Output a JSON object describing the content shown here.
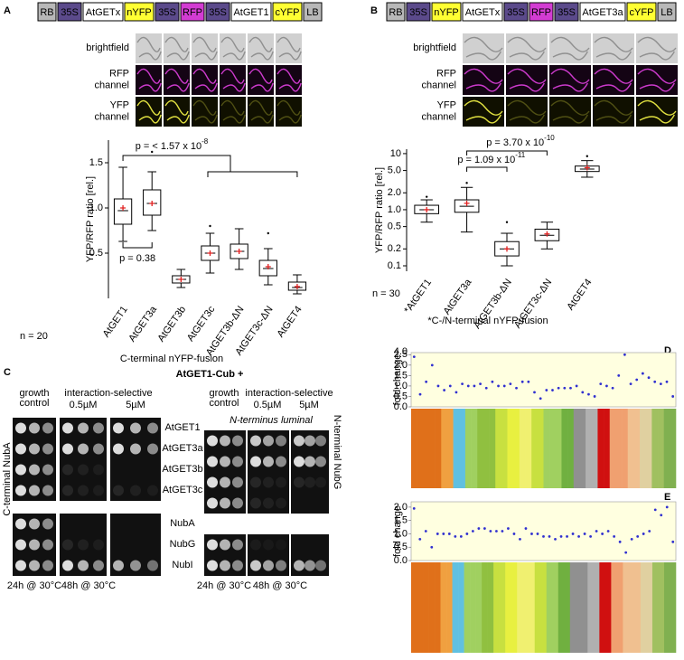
{
  "panel_labels": [
    "A",
    "B",
    "C",
    "D",
    "E"
  ],
  "constructs": {
    "a": [
      {
        "label": "RB",
        "color": "#b8b8b8"
      },
      {
        "label": "35S",
        "color": "#5b4a8b"
      },
      {
        "label": "AtGETx",
        "color": "#ffffff"
      },
      {
        "label": "nYFP",
        "color": "#ffff33"
      },
      {
        "label": "35S",
        "color": "#5b4a8b"
      },
      {
        "label": "RFP",
        "color": "#d23cd2"
      },
      {
        "label": "35S",
        "color": "#5b4a8b"
      },
      {
        "label": "AtGET1",
        "color": "#ffffff"
      },
      {
        "label": "cYFP",
        "color": "#ffff33"
      },
      {
        "label": "LB",
        "color": "#b8b8b8"
      }
    ],
    "b": [
      {
        "label": "RB",
        "color": "#b8b8b8"
      },
      {
        "label": "35S",
        "color": "#5b4a8b"
      },
      {
        "label": "nYFP",
        "color": "#ffff33"
      },
      {
        "label": "AtGETx",
        "color": "#ffffff"
      },
      {
        "label": "35S",
        "color": "#5b4a8b"
      },
      {
        "label": "RFP",
        "color": "#d23cd2"
      },
      {
        "label": "35S",
        "color": "#5b4a8b"
      },
      {
        "label": "AtGET3a",
        "color": "#ffffff"
      },
      {
        "label": "cYFP",
        "color": "#ffff33"
      },
      {
        "label": "LB",
        "color": "#b8b8b8"
      }
    ]
  },
  "microscopy": {
    "a": [
      [
        "brightfield"
      ],
      [
        "RFP",
        "channel"
      ],
      [
        "YFP",
        "channel"
      ]
    ],
    "b": [
      [
        "brightfield"
      ],
      [
        "RFP",
        "channel"
      ],
      [
        "YFP",
        "channel"
      ]
    ]
  },
  "chart_data": [
    {
      "type": "box",
      "ylabel": "YFP/RFP ratio [rel.]",
      "xlabel": "C-terminal nYFP-fusion",
      "n_label": "n = 20",
      "categories": [
        "AtGET1",
        "AtGET3a",
        "AtGET3b",
        "AtGET3c",
        "AtGET3b-ΔN",
        "AtGET3c-ΔN",
        "AtGET4"
      ],
      "boxes": [
        {
          "whislo": 0.63,
          "q1": 0.82,
          "med": 0.97,
          "q3": 1.1,
          "whishi": 1.45,
          "mean": 1.0,
          "outliers": []
        },
        {
          "whislo": 0.75,
          "q1": 0.92,
          "med": 1.05,
          "q3": 1.2,
          "whishi": 1.4,
          "mean": 1.05,
          "outliers": [
            1.62
          ]
        },
        {
          "whislo": 0.12,
          "q1": 0.17,
          "med": 0.21,
          "q3": 0.25,
          "whishi": 0.32,
          "mean": 0.21,
          "outliers": []
        },
        {
          "whislo": 0.28,
          "q1": 0.42,
          "med": 0.5,
          "q3": 0.58,
          "whishi": 0.72,
          "mean": 0.5,
          "outliers": [
            0.8
          ]
        },
        {
          "whislo": 0.32,
          "q1": 0.44,
          "med": 0.52,
          "q3": 0.6,
          "whishi": 0.77,
          "mean": 0.52,
          "outliers": []
        },
        {
          "whislo": 0.15,
          "q1": 0.25,
          "med": 0.33,
          "q3": 0.42,
          "whishi": 0.55,
          "mean": 0.35,
          "outliers": [
            0.72
          ]
        },
        {
          "whislo": 0.05,
          "q1": 0.09,
          "med": 0.12,
          "q3": 0.18,
          "whishi": 0.26,
          "mean": 0.13,
          "outliers": []
        }
      ],
      "ylim": [
        0,
        1.75
      ],
      "yticks": [
        0.5,
        {
          "value": 1,
          "label": "1.0"
        },
        1.5
      ],
      "log_y": false,
      "annotations": [
        {
          "text": "p = < 1.57 x 10",
          "exponent": "-8"
        },
        {
          "text": "p = 0.38"
        }
      ]
    },
    {
      "type": "box",
      "ylabel": "YFP/RFP ratio [rel.]",
      "xlabel": "*C-/N-terminal nYFP-fusion",
      "n_label": "n = 30",
      "categories": [
        "*AtGET1",
        "AtGET3a",
        "AtGET3b-ΔN",
        "AtGET3c-ΔN",
        "AtGET4"
      ],
      "boxes": [
        {
          "whislo": 0.6,
          "q1": 0.85,
          "med": 1.0,
          "q3": 1.2,
          "whishi": 1.5,
          "mean": 1.0,
          "outliers": [
            1.7
          ]
        },
        {
          "whislo": 0.4,
          "q1": 0.9,
          "med": 1.15,
          "q3": 1.5,
          "whishi": 2.5,
          "mean": 1.3,
          "outliers": [
            3.0
          ]
        },
        {
          "whislo": 0.1,
          "q1": 0.15,
          "med": 0.2,
          "q3": 0.27,
          "whishi": 0.38,
          "mean": 0.2,
          "outliers": [
            0.6
          ]
        },
        {
          "whislo": 0.2,
          "q1": 0.28,
          "med": 0.35,
          "q3": 0.45,
          "whishi": 0.6,
          "mean": 0.37,
          "outliers": []
        },
        {
          "whislo": 3.8,
          "q1": 4.8,
          "med": 5.3,
          "q3": 6.0,
          "whishi": 7.5,
          "mean": 5.6,
          "outliers": [
            9.0
          ]
        }
      ],
      "ylim": [
        0.08,
        12
      ],
      "yticks": [
        0.1,
        0.2,
        0.5,
        {
          "value": 1,
          "label": "1.0"
        },
        {
          "value": 2,
          "label": "2.0"
        },
        {
          "value": 5,
          "label": "5.0"
        },
        10
      ],
      "log_y": true,
      "annotations": [
        {
          "text": "p = 3.70 x 10",
          "exponent": "-10"
        },
        {
          "text": "p = 1.09 x 10",
          "exponent": "-11"
        }
      ]
    },
    {
      "type": "dots",
      "ylabel": "fold change",
      "color": "#3030d0",
      "background": "#ffffe0",
      "axis_break_label": "4.0",
      "values": [
        2.4,
        0.6,
        1.2,
        2.0,
        1.0,
        0.8,
        1.0,
        0.7,
        1.1,
        1.0,
        1.0,
        1.1,
        0.9,
        1.2,
        1.0,
        1.0,
        1.1,
        0.9,
        1.2,
        1.2,
        0.7,
        0.4,
        0.8,
        0.8,
        0.9,
        0.9,
        0.9,
        1.0,
        0.7,
        0.6,
        0.5,
        1.1,
        1.0,
        0.9,
        1.5,
        2.5,
        1.1,
        1.3,
        1.6,
        1.4,
        1.2,
        1.1,
        1.2,
        0.5
      ],
      "ylim": [
        0,
        2.6
      ],
      "yticks": [
        {
          "value": 0,
          "label": "0.0"
        },
        0.5,
        {
          "value": 1,
          "label": "1.0"
        },
        1.5,
        {
          "value": 2,
          "label": "2.0"
        },
        2.5
      ]
    },
    {
      "type": "dots",
      "ylabel": "fold change",
      "color": "#3030d0",
      "background": "#ffffe0",
      "values": [
        1.95,
        0.8,
        1.1,
        0.5,
        1.0,
        1.0,
        1.0,
        0.9,
        0.9,
        1.0,
        1.1,
        1.2,
        1.2,
        1.1,
        1.1,
        1.1,
        1.2,
        1.0,
        0.8,
        1.2,
        1.0,
        1.0,
        0.9,
        0.9,
        0.8,
        0.9,
        0.9,
        1.0,
        0.9,
        1.0,
        0.9,
        1.1,
        1.0,
        1.1,
        0.9,
        0.7,
        0.3,
        0.8,
        0.9,
        1.0,
        1.1,
        1.9,
        1.7,
        2.0,
        0.7
      ],
      "ylim": [
        0,
        2.2
      ],
      "yticks": [
        {
          "value": 0,
          "label": "0.0"
        },
        0.5,
        {
          "value": 1,
          "label": "1.0"
        },
        1.5,
        {
          "value": 2,
          "label": "2.0"
        }
      ]
    }
  ],
  "yeast": {
    "title": "AtGET1-Cub +",
    "left_header": {
      "growth": [
        "growth",
        "control"
      ],
      "selective": "interaction-selective",
      "conc": [
        "0.5µM",
        "5µM"
      ]
    },
    "right_header": {
      "growth": [
        "growth",
        "control"
      ],
      "selective": "interaction-selective",
      "conc": [
        "0.5µM",
        "5µM"
      ],
      "note": "N-terminus luminal"
    },
    "rows_top": [
      "AtGET1",
      "AtGET3a",
      "AtGET3b",
      "AtGET3c"
    ],
    "rows_bottom": [
      "NubA",
      "NubG",
      "NubI"
    ],
    "side_left": "C-terminal NubA",
    "side_right": "N-terminal NubG",
    "time_left": [
      "24h @ 30°C",
      "48h @ 30°C"
    ],
    "time_right": [
      "24h @ 30°C",
      "48h @ 30°C"
    ]
  }
}
